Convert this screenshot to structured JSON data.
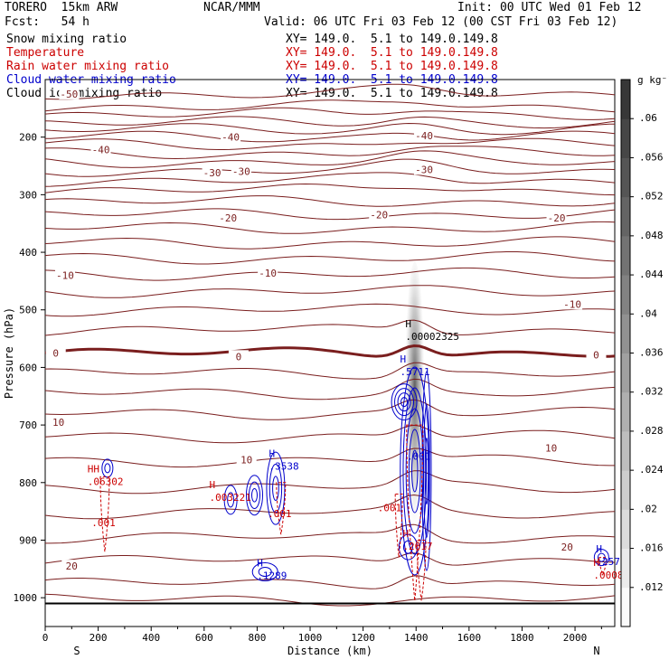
{
  "header": {
    "model": "TORERO  15km ARW",
    "center": "NCAR/MMM",
    "init": "Init: 00 UTC Wed 01 Feb 12",
    "fcst": "Fcst:   54 h",
    "valid": "Valid: 06 UTC Fri 03 Feb 12 (00 CST Fri 03 Feb 12)"
  },
  "legend": [
    {
      "name": "Snow mixing ratio",
      "xy": "",
      "color": "#000000"
    },
    {
      "name": "Temperature",
      "xy": "XY= 149.0.  5.1 to 149.0.149.8",
      "color": "#cc0000"
    },
    {
      "name": "Rain water mixing ratio",
      "xy": "XY= 149.0.  5.1 to 149.0.149.8",
      "color": "#cc0000"
    },
    {
      "name": "Cloud water mixing ratio",
      "xy": "XY= 149.0.  5.1 to 149.0.149.8",
      "color": "#0000cc"
    },
    {
      "name": "Cloud ice mixing ratio",
      "xy": "XY= 149.0.  5.1 to 149.0.149.8",
      "color": "#000000"
    }
  ],
  "snow_xy": "XY= 149.0.  5.1 to 149.0.149.8",
  "chart_data": {
    "type": "contour cross-section",
    "xlabel": "Distance (km)",
    "ylabel": "Pressure (hPa)",
    "xlim": [
      0,
      2150
    ],
    "ylim": [
      1050,
      100
    ],
    "xticks": [
      0,
      200,
      400,
      600,
      800,
      1000,
      1200,
      1400,
      1600,
      1800,
      2000
    ],
    "yticks": [
      200,
      300,
      400,
      500,
      600,
      700,
      800,
      900,
      1000
    ],
    "left_end": "S",
    "right_end": "N",
    "colorbar": {
      "unit": "g kg⁻¹",
      "ticks": [
        ".012",
        ".016",
        ".02",
        ".024",
        ".028",
        ".032",
        ".036",
        ".04",
        ".044",
        ".048",
        ".052",
        ".056",
        ".06"
      ],
      "values": [
        0.012,
        0.016,
        0.02,
        0.024,
        0.028,
        0.032,
        0.036,
        0.04,
        0.044,
        0.048,
        0.052,
        0.056,
        0.06
      ],
      "range": [
        0.008,
        0.064
      ]
    },
    "temperature_labels": [
      {
        "text": "-50",
        "x": 90,
        "p": 125
      },
      {
        "text": "-40",
        "x": 210,
        "p": 222
      },
      {
        "text": "-40",
        "x": 700,
        "p": 200
      },
      {
        "text": "-40",
        "x": 1430,
        "p": 197
      },
      {
        "text": "-30",
        "x": 630,
        "p": 262
      },
      {
        "text": "-30",
        "x": 740,
        "p": 259
      },
      {
        "text": "-30",
        "x": 1430,
        "p": 256
      },
      {
        "text": "-20",
        "x": 690,
        "p": 340
      },
      {
        "text": "-20",
        "x": 1260,
        "p": 335
      },
      {
        "text": "-20",
        "x": 1930,
        "p": 340
      },
      {
        "text": "-10",
        "x": 75,
        "p": 440
      },
      {
        "text": "-10",
        "x": 840,
        "p": 436
      },
      {
        "text": "-10",
        "x": 1990,
        "p": 490
      },
      {
        "text": "0",
        "x": 40,
        "p": 575
      },
      {
        "text": "0",
        "x": 730,
        "p": 581
      },
      {
        "text": "0",
        "x": 2080,
        "p": 578
      },
      {
        "text": "10",
        "x": 50,
        "p": 695
      },
      {
        "text": "10",
        "x": 760,
        "p": 760
      },
      {
        "text": "10",
        "x": 1910,
        "p": 740
      },
      {
        "text": "20",
        "x": 100,
        "p": 945
      },
      {
        "text": "20",
        "x": 1970,
        "p": 912
      }
    ],
    "maxima_labels": [
      {
        "mark": "H",
        "text": ".00002325",
        "x": 1380,
        "p": 543,
        "color": "#000000"
      },
      {
        "mark": "H",
        "text": ".5711",
        "x": 1360,
        "p": 604,
        "color": "#0000cc"
      },
      {
        "mark": "H",
        "text": ".3538",
        "x": 865,
        "p": 768,
        "color": "#0000cc"
      },
      {
        "mark": "H",
        "text": ".1289",
        "x": 820,
        "p": 958,
        "color": "#0000cc"
      },
      {
        "mark": "H",
        "text": ".2579",
        "x": 2100,
        "p": 934,
        "color": "#0000cc"
      },
      {
        "mark": "HH",
        "text": ".06302",
        "x": 180,
        "p": 795,
        "color": "#cc0000"
      },
      {
        "mark": "H",
        "text": ".003221",
        "x": 640,
        "p": 822,
        "color": "#cc0000"
      },
      {
        "mark": "H",
        "text": ".00080",
        "x": 2090,
        "p": 957,
        "color": "#cc0000"
      },
      {
        "mark": "H",
        "text": ".2617",
        "x": 1370,
        "p": 907,
        "color": "#cc0000"
      }
    ],
    "contour_value_labels": [
      {
        "text": ".001",
        "x": 220,
        "p": 876,
        "color": "#cc0000"
      },
      {
        "text": ".001",
        "x": 885,
        "p": 860,
        "color": "#cc0000"
      },
      {
        "text": ".001",
        "x": 1300,
        "p": 850,
        "color": "#cc0000"
      },
      {
        "text": ".001",
        "x": 1410,
        "p": 760,
        "color": "#0000cc"
      }
    ]
  }
}
